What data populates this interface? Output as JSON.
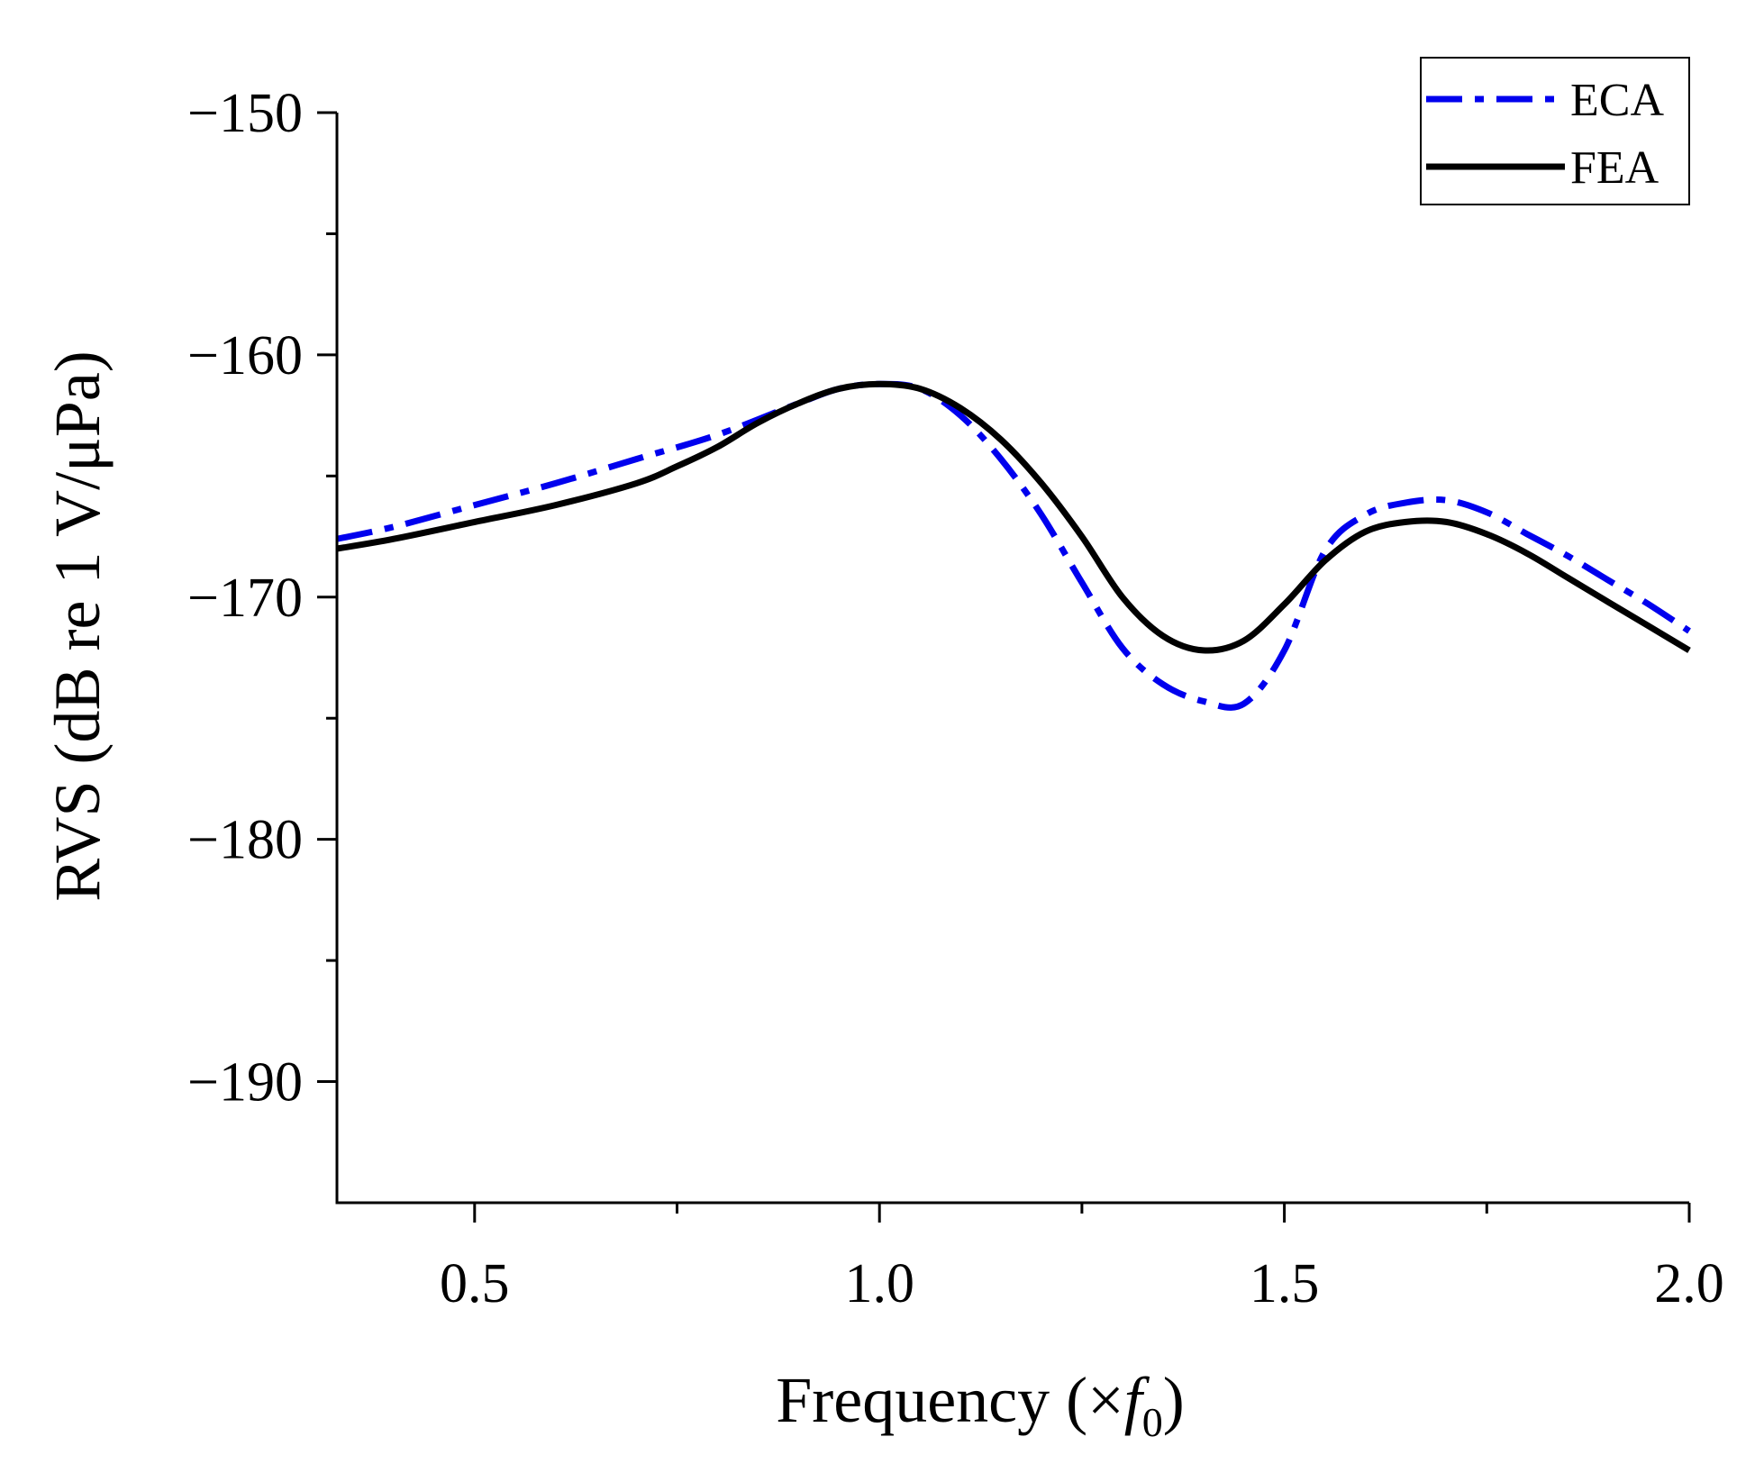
{
  "chart_data": {
    "type": "line",
    "title": "",
    "xlabel": {
      "prefix": "Frequency (×",
      "symbol": "f",
      "subscript": "0",
      "suffix": ")"
    },
    "ylabel": "RVS (dB re 1 V/μPa)",
    "xlim": [
      0.33,
      2.0
    ],
    "ylim": [
      -195,
      -150
    ],
    "x_ticks": [
      0.5,
      1.0,
      1.5,
      2.0
    ],
    "x_tick_labels": [
      "0.5",
      "1.0",
      "1.5",
      "2.0"
    ],
    "x_minor_ticks": [
      0.75,
      1.25,
      1.75
    ],
    "y_ticks": [
      -150,
      -160,
      -170,
      -180,
      -190
    ],
    "y_tick_labels": [
      "−150",
      "−160",
      "−170",
      "−180",
      "−190"
    ],
    "y_minor_ticks": [
      -155,
      -165,
      -175,
      -185
    ],
    "legend_position": "top-right",
    "series": [
      {
        "name": "ECA",
        "color": "#0000ee",
        "style": "dash-dot",
        "x": [
          0.33,
          0.4,
          0.5,
          0.6,
          0.7,
          0.8,
          0.9,
          0.95,
          1.0,
          1.05,
          1.1,
          1.15,
          1.2,
          1.25,
          1.3,
          1.35,
          1.4,
          1.45,
          1.5,
          1.55,
          1.6,
          1.65,
          1.7,
          1.75,
          1.8,
          1.85,
          1.9,
          1.95,
          2.0
        ],
        "y": [
          -167.6,
          -167.1,
          -166.2,
          -165.3,
          -164.3,
          -163.3,
          -162.0,
          -161.4,
          -161.2,
          -161.4,
          -162.5,
          -164.3,
          -166.6,
          -169.4,
          -172.1,
          -173.6,
          -174.3,
          -174.4,
          -172.2,
          -168.1,
          -166.6,
          -166.1,
          -166.0,
          -166.5,
          -167.4,
          -168.3,
          -169.3,
          -170.3,
          -171.4
        ]
      },
      {
        "name": "FEA",
        "color": "#000000",
        "style": "solid",
        "x": [
          0.33,
          0.4,
          0.5,
          0.6,
          0.7,
          0.75,
          0.8,
          0.85,
          0.9,
          0.95,
          1.0,
          1.05,
          1.1,
          1.15,
          1.2,
          1.25,
          1.3,
          1.35,
          1.4,
          1.45,
          1.5,
          1.55,
          1.6,
          1.65,
          1.7,
          1.75,
          1.8,
          1.85,
          1.9,
          1.95,
          2.0
        ],
        "y": [
          -168.0,
          -167.6,
          -166.9,
          -166.2,
          -165.3,
          -164.6,
          -163.8,
          -162.8,
          -162.0,
          -161.4,
          -161.2,
          -161.4,
          -162.2,
          -163.5,
          -165.3,
          -167.5,
          -170.0,
          -171.6,
          -172.2,
          -171.8,
          -170.3,
          -168.5,
          -167.3,
          -166.9,
          -166.9,
          -167.4,
          -168.2,
          -169.2,
          -170.2,
          -171.2,
          -172.2
        ]
      }
    ]
  }
}
